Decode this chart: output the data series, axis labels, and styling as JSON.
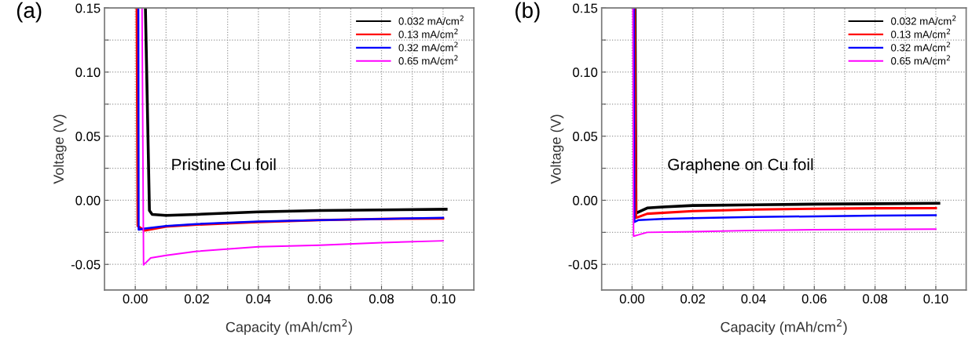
{
  "chart_data": [
    {
      "type": "line",
      "xlabel": "Capacity (mAh/cm$^{2}$)",
      "ylabel": "Voltage (V)",
      "annotations": [
        "(a)",
        "Pristine Cu foil"
      ],
      "xlim": [
        -0.01,
        0.11
      ],
      "ylim": [
        -0.07,
        0.15
      ],
      "xticks": [
        {
          "value": 0.0,
          "label": "0.00"
        },
        {
          "value": 0.01,
          "label": null
        },
        0.02,
        {
          "value": 0.03,
          "label": null
        },
        0.04,
        {
          "value": 0.05,
          "label": null
        },
        0.06,
        {
          "value": 0.07,
          "label": null
        },
        0.08,
        {
          "value": 0.09,
          "label": null
        },
        {
          "value": 0.1,
          "label": "0.10"
        }
      ],
      "yticks": [
        {
          "value": -0.05,
          "label": "-0.05"
        },
        {
          "value": -0.025,
          "label": null
        },
        {
          "value": 0.0,
          "label": "0.00"
        },
        {
          "value": 0.025,
          "label": null
        },
        {
          "value": 0.05,
          "label": "0.05"
        },
        {
          "value": 0.075,
          "label": null
        },
        {
          "value": 0.1,
          "label": "0.10"
        },
        {
          "value": 0.125,
          "label": null
        },
        {
          "value": 0.15,
          "label": "0.15"
        }
      ],
      "grid": true,
      "legend": "top right",
      "marker": "none",
      "line_style": "solid",
      "series": [
        {
          "name": "0.032 mA/cm$^{2}$",
          "color": "#000000",
          "x": [
            0.0033,
            0.0046,
            0.0055,
            0.01,
            0.02,
            0.04,
            0.06,
            0.08,
            0.101
          ],
          "values": [
            0.15,
            -0.008,
            -0.011,
            -0.0118,
            -0.011,
            -0.009,
            -0.008,
            -0.0075,
            -0.007
          ]
        },
        {
          "name": "0.13 mA/cm$^{2}$",
          "color": "#ff0000",
          "x": [
            0.0005,
            0.0008,
            0.003,
            0.01,
            0.02,
            0.04,
            0.06,
            0.08,
            0.1
          ],
          "values": [
            0.15,
            -0.02,
            -0.0235,
            -0.0205,
            -0.019,
            -0.017,
            -0.0155,
            -0.0145,
            -0.0142
          ]
        },
        {
          "name": "0.32 mA/cm$^{2}$",
          "color": "#0000ff",
          "x": [
            0.001,
            0.0011,
            0.003,
            0.01,
            0.02,
            0.04,
            0.06,
            0.08,
            0.1
          ],
          "values": [
            0.15,
            -0.023,
            -0.022,
            -0.02,
            -0.0185,
            -0.0165,
            -0.0155,
            -0.0145,
            -0.0137
          ]
        },
        {
          "name": "0.65 mA/cm$^{2}$",
          "color": "#ff00ff",
          "x": [
            0.0022,
            0.0027,
            0.005,
            0.01,
            0.02,
            0.04,
            0.06,
            0.08,
            0.1
          ],
          "values": [
            0.15,
            -0.0504,
            -0.045,
            -0.043,
            -0.0398,
            -0.0363,
            -0.035,
            -0.033,
            -0.0316
          ]
        }
      ]
    },
    {
      "type": "line",
      "xlabel": "Capacity (mAh/cm$^{2}$)",
      "ylabel": "Voltage (V)",
      "annotations": [
        "(b)",
        "Graphene on Cu foil"
      ],
      "xlim": [
        -0.01,
        0.11
      ],
      "ylim": [
        -0.07,
        0.15
      ],
      "xticks": [
        {
          "value": 0.0,
          "label": "0.00"
        },
        {
          "value": 0.01,
          "label": null
        },
        0.02,
        {
          "value": 0.03,
          "label": null
        },
        0.04,
        {
          "value": 0.05,
          "label": null
        },
        0.06,
        {
          "value": 0.07,
          "label": null
        },
        0.08,
        {
          "value": 0.09,
          "label": null
        },
        {
          "value": 0.1,
          "label": "0.10"
        }
      ],
      "yticks": [
        {
          "value": -0.05,
          "label": "-0.05"
        },
        {
          "value": -0.025,
          "label": null
        },
        {
          "value": 0.0,
          "label": "0.00"
        },
        {
          "value": 0.025,
          "label": null
        },
        {
          "value": 0.05,
          "label": "0.05"
        },
        {
          "value": 0.075,
          "label": null
        },
        {
          "value": 0.1,
          "label": "0.10"
        },
        {
          "value": 0.125,
          "label": null
        },
        {
          "value": 0.15,
          "label": "0.15"
        }
      ],
      "grid": true,
      "legend": "top right",
      "marker": "none",
      "line_style": "solid",
      "series": [
        {
          "name": "0.032 mA/cm$^{2}$",
          "color": "#000000",
          "x": [
            0.001,
            0.0013,
            0.005,
            0.01,
            0.02,
            0.04,
            0.06,
            0.08,
            0.101
          ],
          "values": [
            0.15,
            -0.01,
            -0.006,
            -0.0052,
            -0.0041,
            -0.0035,
            -0.003,
            -0.0027,
            -0.0023
          ]
        },
        {
          "name": "0.13 mA/cm$^{2}$",
          "color": "#ff0000",
          "x": [
            0.0008,
            0.0013,
            0.005,
            0.02,
            0.04,
            0.06,
            0.08,
            0.1
          ],
          "values": [
            0.15,
            -0.0137,
            -0.0105,
            -0.0084,
            -0.0072,
            -0.0066,
            -0.0062,
            -0.0061
          ]
        },
        {
          "name": "0.32 mA/cm$^{2}$",
          "color": "#0000ff",
          "x": [
            0.0006,
            0.0008,
            0.002,
            0.01,
            0.02,
            0.04,
            0.06,
            0.08,
            0.1
          ],
          "values": [
            0.15,
            -0.017,
            -0.0155,
            -0.0145,
            -0.014,
            -0.013,
            -0.0125,
            -0.012,
            -0.0116
          ]
        },
        {
          "name": "0.65 mA/cm$^{2}$",
          "color": "#ff00ff",
          "x": [
            0.0003,
            0.0005,
            0.002,
            0.005,
            0.02,
            0.04,
            0.06,
            0.1
          ],
          "values": [
            0.15,
            -0.028,
            -0.027,
            -0.025,
            -0.0245,
            -0.0235,
            -0.023,
            -0.0225
          ]
        }
      ]
    }
  ]
}
